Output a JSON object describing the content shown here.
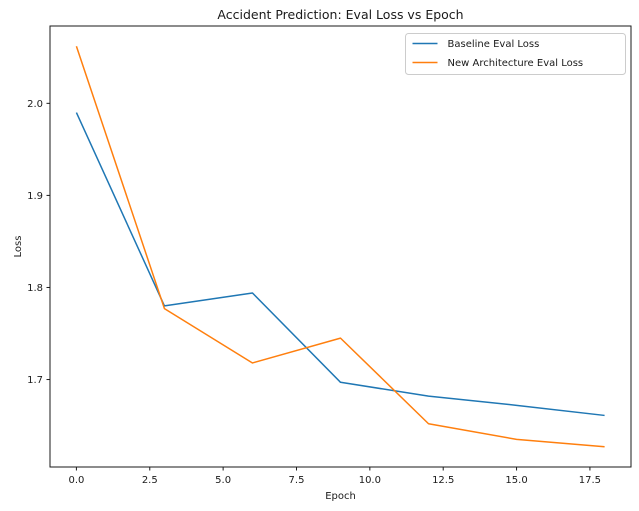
{
  "chart_data": {
    "type": "line",
    "title": "Accident Prediction: Eval Loss vs Epoch",
    "xlabel": "Epoch",
    "ylabel": "Loss",
    "x": [
      0,
      3,
      6,
      9,
      12,
      15,
      18
    ],
    "series": [
      {
        "name": "Baseline Eval Loss",
        "color": "#1f77b4",
        "values": [
          1.99,
          1.78,
          1.794,
          1.697,
          1.682,
          1.672,
          1.661
        ]
      },
      {
        "name": "New Architecture Eval Loss",
        "color": "#ff7f0e",
        "values": [
          2.062,
          1.777,
          1.718,
          1.745,
          1.652,
          1.635,
          1.627
        ]
      }
    ],
    "xticks": [
      0.0,
      2.5,
      5.0,
      7.5,
      10.0,
      12.5,
      15.0,
      17.5
    ],
    "xtick_labels": [
      "0.0",
      "2.5",
      "5.0",
      "7.5",
      "10.0",
      "12.5",
      "15.0",
      "17.5"
    ],
    "yticks": [
      1.7,
      1.8,
      1.9,
      2.0
    ],
    "ytick_labels": [
      "1.7",
      "1.8",
      "1.9",
      "2.0"
    ],
    "xlim": [
      -0.9,
      18.9
    ],
    "ylim": [
      1.605,
      2.084
    ],
    "grid": false,
    "legend": {
      "position": "upper right",
      "entries": [
        "Baseline Eval Loss",
        "New Architecture Eval Loss"
      ]
    },
    "colors": {
      "spine": "#1a1a1a",
      "legend_border": "#cccccc",
      "background": "#ffffff"
    }
  }
}
